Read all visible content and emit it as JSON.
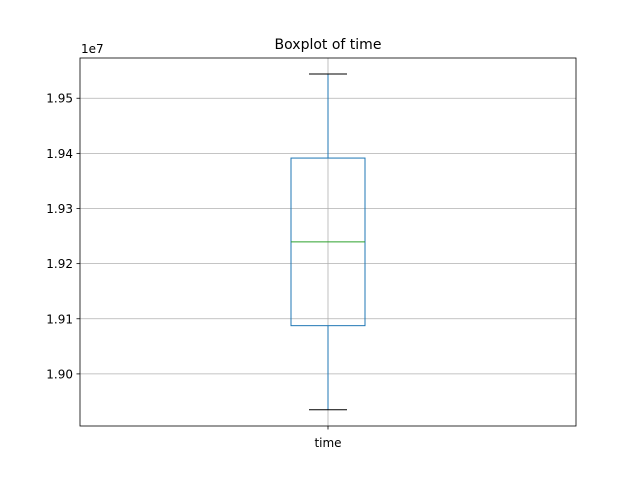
{
  "chart_data": {
    "type": "box",
    "title": "Boxplot of time",
    "offset_label": "1e7",
    "categories": [
      "time"
    ],
    "boxes": [
      {
        "category": "time",
        "whisker_low": 18935000,
        "q1": 19087500,
        "median": 19239500,
        "q3": 19391500,
        "whisker_high": 19544000
      }
    ],
    "ylim": [
      18905500,
      19573000
    ],
    "yticks": [
      {
        "value": 19000000,
        "label": "1.90"
      },
      {
        "value": 19100000,
        "label": "1.91"
      },
      {
        "value": 19200000,
        "label": "1.92"
      },
      {
        "value": 19300000,
        "label": "1.93"
      },
      {
        "value": 19400000,
        "label": "1.94"
      },
      {
        "value": 19500000,
        "label": "1.95"
      }
    ],
    "grid": true,
    "colors": {
      "box": "#1f77b4",
      "median": "#2ca02c",
      "caps": "#000000",
      "grid": "#b0b0b0"
    }
  }
}
